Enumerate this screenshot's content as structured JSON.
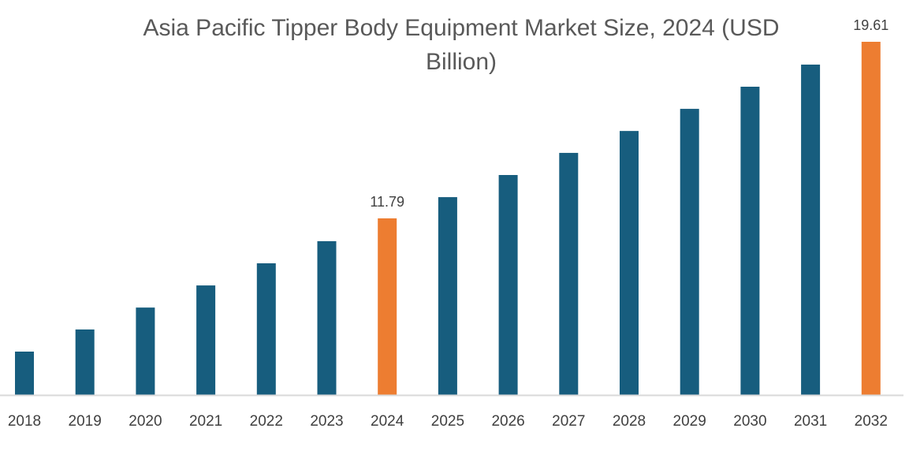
{
  "chart_data": {
    "type": "bar",
    "title": "Asia Pacific Tipper Body Equipment Market Size, 2024 (USD Billion)",
    "xlabel": "",
    "ylabel": "",
    "categories": [
      "2018",
      "2019",
      "2020",
      "2021",
      "2022",
      "2023",
      "2024",
      "2025",
      "2026",
      "2027",
      "2028",
      "2029",
      "2030",
      "2031",
      "2032"
    ],
    "values": [
      5.89,
      6.87,
      7.84,
      8.82,
      9.8,
      10.78,
      11.79,
      12.73,
      13.71,
      14.69,
      15.66,
      16.64,
      17.62,
      18.6,
      19.61
    ],
    "data_labels": {
      "2024": "11.79",
      "2032": "19.61"
    },
    "ylim": [
      3.97,
      19.61
    ],
    "grid": false,
    "colors": {
      "default": "#175d7e",
      "highlight": "#ed7d31",
      "axis": "#d9d9d9"
    },
    "highlight_categories": [
      "2024",
      "2032"
    ]
  }
}
